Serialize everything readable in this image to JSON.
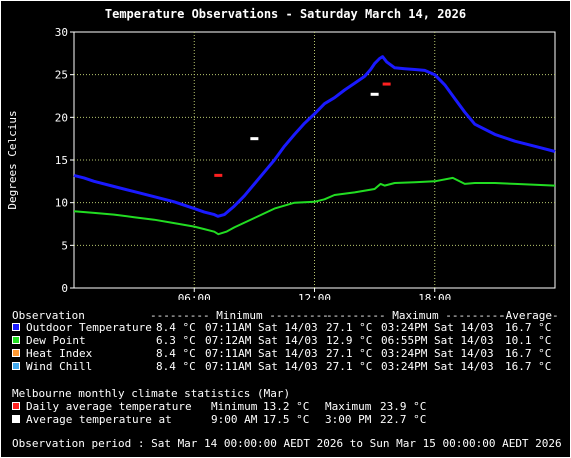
{
  "title": "Temperature Observations - Saturday March 14, 2026",
  "chart_data": {
    "type": "line",
    "ylabel": "Degrees Celcius",
    "ylim": [
      0,
      30
    ],
    "yticks": [
      "0",
      "5",
      "10",
      "15",
      "20",
      "25",
      "30"
    ],
    "xlim": [
      0,
      24
    ],
    "xticks": [
      {
        "x": 6,
        "label": "06:00"
      },
      {
        "x": 12,
        "label": "12:00"
      },
      {
        "x": 18,
        "label": "18:00"
      }
    ],
    "grid": true,
    "series": [
      {
        "name": "Outdoor Temperature",
        "color": "#1a1aff",
        "x": [
          0,
          0.5,
          1,
          2,
          3,
          4,
          5,
          6,
          6.5,
          7,
          7.18,
          7.5,
          8,
          8.5,
          9,
          9.5,
          10,
          10.5,
          11,
          11.5,
          12,
          12.5,
          13,
          13.5,
          14,
          14.5,
          14.8,
          15,
          15.25,
          15.4,
          15.6,
          16,
          16.5,
          17,
          17.5,
          18,
          18.5,
          19,
          19.5,
          20,
          21,
          22,
          23,
          24
        ],
        "y": [
          13.2,
          12.9,
          12.5,
          11.9,
          11.3,
          10.7,
          10.1,
          9.3,
          8.9,
          8.6,
          8.4,
          8.6,
          9.6,
          10.8,
          12.2,
          13.6,
          15.0,
          16.6,
          18.0,
          19.3,
          20.4,
          21.6,
          22.3,
          23.2,
          24.0,
          24.8,
          25.6,
          26.3,
          26.9,
          27.1,
          26.5,
          25.8,
          25.7,
          25.6,
          25.5,
          25.0,
          23.8,
          22.2,
          20.6,
          19.2,
          18.0,
          17.2,
          16.6,
          16.0
        ]
      },
      {
        "name": "Dew Point",
        "color": "#22dd22",
        "x": [
          0,
          1,
          2,
          3,
          4,
          5,
          6,
          6.5,
          7,
          7.2,
          7.6,
          8,
          9,
          10,
          11,
          12,
          12.5,
          13,
          14,
          15,
          15.3,
          15.5,
          16,
          17,
          18,
          18.9,
          19.5,
          20,
          21,
          22,
          23,
          24
        ],
        "y": [
          9.0,
          8.8,
          8.6,
          8.3,
          8.0,
          7.6,
          7.2,
          6.9,
          6.6,
          6.3,
          6.6,
          7.1,
          8.2,
          9.3,
          10.0,
          10.1,
          10.4,
          10.9,
          11.2,
          11.6,
          12.2,
          12.0,
          12.3,
          12.4,
          12.5,
          12.9,
          12.2,
          12.3,
          12.3,
          12.2,
          12.1,
          12.0
        ]
      }
    ],
    "markers": [
      {
        "name": "Daily average temperature",
        "color": "#ff2020",
        "points": [
          {
            "x": 7.2,
            "y": 13.2
          },
          {
            "x": 15.6,
            "y": 23.9
          }
        ]
      },
      {
        "name": "Average temperature at",
        "color": "#ffffff",
        "points": [
          {
            "x": 9.0,
            "y": 17.5
          },
          {
            "x": 15.0,
            "y": 22.7
          }
        ]
      }
    ]
  },
  "legend": {
    "header": {
      "label": "Observation",
      "min": "--------- Minimum ---------",
      "max": "--------- Maximum ---------",
      "avg": "-Average-"
    },
    "rows": [
      {
        "color": "#1a1aff",
        "label": "Outdoor Temperature",
        "min_val": "8.4 °C",
        "min_time": "07:11AM Sat 14/03",
        "max_val": "27.1 °C",
        "max_time": "03:24PM Sat 14/03",
        "avg": "16.7 °C"
      },
      {
        "color": "#22dd22",
        "label": "Dew Point",
        "min_val": "6.3 °C",
        "min_time": "07:12AM Sat 14/03",
        "max_val": "12.9 °C",
        "max_time": "06:55PM Sat 14/03",
        "avg": "10.1 °C"
      },
      {
        "color": "#ff9933",
        "label": "Heat Index",
        "min_val": "8.4 °C",
        "min_time": "07:11AM Sat 14/03",
        "max_val": "27.1 °C",
        "max_time": "03:24PM Sat 14/03",
        "avg": "16.7 °C"
      },
      {
        "color": "#44aaee",
        "label": "Wind Chill",
        "min_val": "8.4 °C",
        "min_time": "07:11AM Sat 14/03",
        "max_val": "27.1 °C",
        "max_time": "03:24PM Sat 14/03",
        "avg": "16.7 °C"
      }
    ]
  },
  "climate": {
    "heading": "Melbourne monthly climate statistics (Mar)",
    "rows": [
      {
        "color": "#ff2020",
        "label": "Daily average temperature",
        "col1": "Minimum",
        "col2": "13.2 °C",
        "col3": "Maximum",
        "col4": "23.9 °C"
      },
      {
        "color": "#ffffff",
        "label": "Average temperature at",
        "col1": "9:00 AM",
        "col2": "17.5 °C",
        "col3": "3:00 PM",
        "col4": "22.7 °C"
      }
    ]
  },
  "footer": "Observation period : Sat Mar 14 00:00:00 AEDT 2026 to Sun Mar 15 00:00:00 AEDT 2026"
}
